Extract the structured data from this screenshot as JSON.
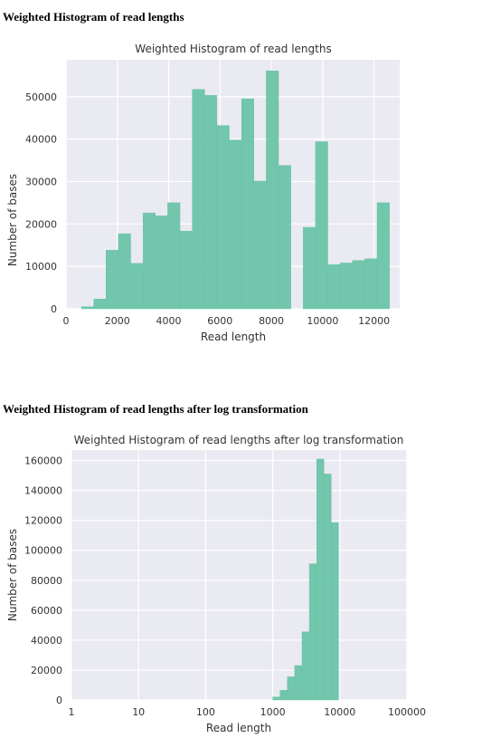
{
  "page": {
    "heading1": "Weighted Histogram of read lengths",
    "heading2": "Weighted Histogram of read lengths after log transformation"
  },
  "chart_data": [
    {
      "type": "bar",
      "title": "Weighted Histogram of read lengths",
      "xlabel": "Read length",
      "ylabel": "Number of bases",
      "xlim": [
        0,
        13000
      ],
      "ylim": [
        0,
        58700
      ],
      "xticks": [
        0,
        2000,
        4000,
        6000,
        8000,
        10000,
        12000
      ],
      "xtick_labels": [
        "0",
        "2000",
        "4000",
        "6000",
        "8000",
        "10000",
        "12000"
      ],
      "yticks": [
        0,
        10000,
        20000,
        30000,
        40000,
        50000
      ],
      "ytick_labels": [
        "0",
        "10000",
        "20000",
        "30000",
        "40000",
        "50000"
      ],
      "bar_color": "#66c2a5",
      "background": "#eaeaf2",
      "grid": true,
      "bins": [
        {
          "x0": 600,
          "x1": 1080,
          "value": 500
        },
        {
          "x0": 1080,
          "x1": 1560,
          "value": 2300
        },
        {
          "x0": 1560,
          "x1": 2040,
          "value": 13800
        },
        {
          "x0": 2040,
          "x1": 2520,
          "value": 17700
        },
        {
          "x0": 2520,
          "x1": 3000,
          "value": 10700
        },
        {
          "x0": 3000,
          "x1": 3480,
          "value": 22600
        },
        {
          "x0": 3480,
          "x1": 3960,
          "value": 21900
        },
        {
          "x0": 3960,
          "x1": 4440,
          "value": 25000
        },
        {
          "x0": 4440,
          "x1": 4920,
          "value": 18300
        },
        {
          "x0": 4920,
          "x1": 5400,
          "value": 51700
        },
        {
          "x0": 5400,
          "x1": 5880,
          "value": 50300
        },
        {
          "x0": 5880,
          "x1": 6360,
          "value": 43200
        },
        {
          "x0": 6360,
          "x1": 6840,
          "value": 39800
        },
        {
          "x0": 6840,
          "x1": 7320,
          "value": 49500
        },
        {
          "x0": 7320,
          "x1": 7800,
          "value": 30100
        },
        {
          "x0": 7800,
          "x1": 8280,
          "value": 56100
        },
        {
          "x0": 8280,
          "x1": 8760,
          "value": 33800
        },
        {
          "x0": 8760,
          "x1": 9240,
          "value": 0
        },
        {
          "x0": 9240,
          "x1": 9720,
          "value": 19200
        },
        {
          "x0": 9720,
          "x1": 10200,
          "value": 39400
        },
        {
          "x0": 10200,
          "x1": 10680,
          "value": 10400
        },
        {
          "x0": 10680,
          "x1": 11160,
          "value": 10800
        },
        {
          "x0": 11160,
          "x1": 11640,
          "value": 11400
        },
        {
          "x0": 11640,
          "x1": 12120,
          "value": 11800
        },
        {
          "x0": 12120,
          "x1": 12600,
          "value": 25000
        }
      ]
    },
    {
      "type": "bar",
      "title": "Weighted Histogram of read lengths after log transformation",
      "xlabel": "Read length",
      "ylabel": "Number of bases",
      "xscale": "log",
      "xlim": [
        1,
        100000
      ],
      "ylim": [
        0,
        167000
      ],
      "xticks": [
        1,
        10,
        100,
        1000,
        10000,
        100000
      ],
      "xtick_labels": [
        "1",
        "10",
        "100",
        "1000",
        "10000",
        "100000"
      ],
      "yticks": [
        0,
        20000,
        40000,
        60000,
        80000,
        100000,
        120000,
        140000,
        160000
      ],
      "ytick_labels": [
        "0",
        "20000",
        "40000",
        "60000",
        "80000",
        "100000",
        "120000",
        "140000",
        "160000"
      ],
      "bar_color": "#66c2a5",
      "background": "#eaeaf2",
      "grid": true,
      "bins": [
        {
          "x0": 1000,
          "x1": 1285,
          "value": 2000
        },
        {
          "x0": 1285,
          "x1": 1652,
          "value": 6500
        },
        {
          "x0": 1652,
          "x1": 2124,
          "value": 15500
        },
        {
          "x0": 2124,
          "x1": 2730,
          "value": 23000
        },
        {
          "x0": 2730,
          "x1": 3509,
          "value": 45500
        },
        {
          "x0": 3509,
          "x1": 4510,
          "value": 91000
        },
        {
          "x0": 4510,
          "x1": 5798,
          "value": 161000
        },
        {
          "x0": 5798,
          "x1": 7452,
          "value": 151000
        },
        {
          "x0": 7452,
          "x1": 9580,
          "value": 118500
        }
      ]
    }
  ]
}
